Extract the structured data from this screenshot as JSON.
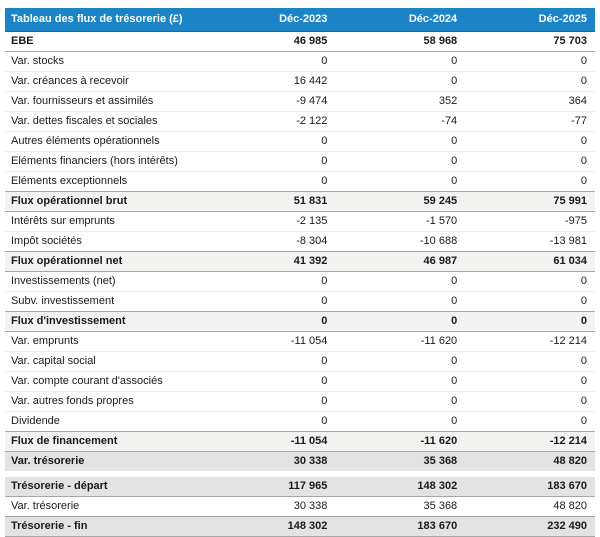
{
  "colors": {
    "header_bg": "#1a84c6",
    "header_text": "#ffffff",
    "subtotal_bg": "#f2f2f1",
    "total_bg": "#e3e3e3",
    "text": "#1a1a1a",
    "row_divider": "#ececec",
    "strong_divider": "#a6a6a6",
    "page_bg": "#ffffff"
  },
  "chart_data": {
    "type": "table",
    "title": "Tableau des flux de trésorerie (£)",
    "columns": [
      "Déc-2023",
      "Déc-2024",
      "Déc-2025"
    ],
    "number_format": "thousands separated by space, minus sign for negatives",
    "sections": [
      {
        "name": "flux",
        "rows": [
          {
            "label": "EBE",
            "style": "lead",
            "values": [
              46985,
              58968,
              75703
            ]
          },
          {
            "label": "Var. stocks",
            "style": "plain",
            "values": [
              0,
              0,
              0
            ]
          },
          {
            "label": "Var. créances à recevoir",
            "style": "plain",
            "values": [
              16442,
              0,
              0
            ]
          },
          {
            "label": "Var. fournisseurs et assimilés",
            "style": "plain",
            "values": [
              -9474,
              352,
              364
            ]
          },
          {
            "label": "Var. dettes fiscales et sociales",
            "style": "plain",
            "values": [
              -2122,
              -74,
              -77
            ]
          },
          {
            "label": "Autres éléments opérationnels",
            "style": "plain",
            "values": [
              0,
              0,
              0
            ]
          },
          {
            "label": "Eléments financiers (hors intérêts)",
            "style": "plain",
            "values": [
              0,
              0,
              0
            ]
          },
          {
            "label": "Eléments exceptionnels",
            "style": "plain",
            "values": [
              0,
              0,
              0
            ]
          },
          {
            "label": "Flux opérationnel brut",
            "style": "subtotal",
            "values": [
              51831,
              59245,
              75991
            ]
          },
          {
            "label": "Intérêts sur emprunts",
            "style": "plain",
            "values": [
              -2135,
              -1570,
              -975
            ]
          },
          {
            "label": "Impôt sociétés",
            "style": "plain",
            "values": [
              -8304,
              -10688,
              -13981
            ]
          },
          {
            "label": "Flux opérationnel net",
            "style": "subtotal",
            "values": [
              41392,
              46987,
              61034
            ]
          },
          {
            "label": "Investissements (net)",
            "style": "plain",
            "values": [
              0,
              0,
              0
            ]
          },
          {
            "label": "Subv. investissement",
            "style": "plain",
            "values": [
              0,
              0,
              0
            ]
          },
          {
            "label": "Flux d'investissement",
            "style": "subtotal",
            "values": [
              0,
              0,
              0
            ]
          },
          {
            "label": "Var. emprunts",
            "style": "plain",
            "values": [
              -11054,
              -11620,
              -12214
            ]
          },
          {
            "label": "Var. capital social",
            "style": "plain",
            "values": [
              0,
              0,
              0
            ]
          },
          {
            "label": "Var. compte courant d'associés",
            "style": "plain",
            "values": [
              0,
              0,
              0
            ]
          },
          {
            "label": "Var. autres fonds propres",
            "style": "plain",
            "values": [
              0,
              0,
              0
            ]
          },
          {
            "label": "Dividende",
            "style": "plain",
            "values": [
              0,
              0,
              0
            ]
          },
          {
            "label": "Flux de financement",
            "style": "subtotal",
            "values": [
              -11054,
              -11620,
              -12214
            ]
          },
          {
            "label": "Var. trésorerie",
            "style": "total",
            "values": [
              30338,
              35368,
              48820
            ]
          }
        ]
      },
      {
        "name": "tresorerie",
        "rows": [
          {
            "label": "Trésorerie - départ",
            "style": "total",
            "values": [
              117965,
              148302,
              183670
            ]
          },
          {
            "label": "Var. trésorerie",
            "style": "plain",
            "values": [
              30338,
              35368,
              48820
            ]
          },
          {
            "label": "Trésorerie - fin",
            "style": "total",
            "values": [
              148302,
              183670,
              232490
            ]
          }
        ]
      }
    ]
  }
}
